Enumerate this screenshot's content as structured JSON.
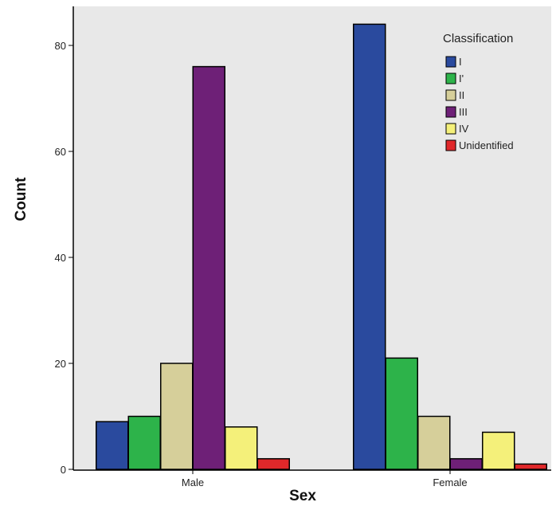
{
  "chart_data": {
    "type": "bar",
    "xlabel": "Sex",
    "ylabel": "Count",
    "categories": [
      "Male",
      "Female"
    ],
    "ylim": [
      0,
      85
    ],
    "yticks": [
      0,
      20,
      40,
      60,
      80
    ],
    "grid": false,
    "legend": {
      "title": "Classification",
      "placement": "top-right"
    },
    "series": [
      {
        "name": "I",
        "color": "#2a4a9e",
        "values": [
          9,
          84
        ]
      },
      {
        "name": "I'",
        "color": "#2db34a",
        "values": [
          10,
          21
        ]
      },
      {
        "name": "II",
        "color": "#d6cf9a",
        "values": [
          20,
          10
        ]
      },
      {
        "name": "III",
        "color": "#6e2077",
        "values": [
          76,
          2
        ]
      },
      {
        "name": "IV",
        "color": "#f4f07a",
        "values": [
          8,
          7
        ]
      },
      {
        "name": "Unidentified",
        "color": "#e0282a",
        "values": [
          2,
          1
        ]
      }
    ],
    "plot_background": "#e8e8e8"
  }
}
